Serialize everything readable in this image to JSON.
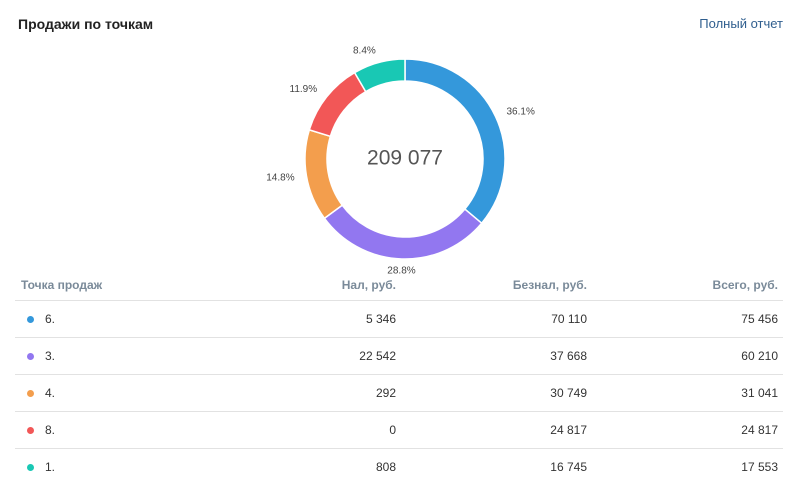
{
  "header": {
    "title": "Продажи по точкам",
    "report_link": "Полный отчет"
  },
  "chart_data": {
    "type": "pie",
    "center_total": "209 077",
    "slices": [
      {
        "label": "6.",
        "percent": 36.1,
        "percent_label": "36.1%",
        "color": "#3498db"
      },
      {
        "label": "3.",
        "percent": 28.8,
        "percent_label": "28.8%",
        "color": "#9277f0"
      },
      {
        "label": "4.",
        "percent": 14.8,
        "percent_label": "14.8%",
        "color": "#f39e4d"
      },
      {
        "label": "8.",
        "percent": 11.9,
        "percent_label": "11.9%",
        "color": "#f25757"
      },
      {
        "label": "1.",
        "percent": 8.4,
        "percent_label": "8.4%",
        "color": "#19c8b4"
      }
    ]
  },
  "table": {
    "headers": {
      "name": "Точка продаж",
      "cash": "Нал, руб.",
      "card": "Безнал, руб.",
      "total": "Всего, руб."
    },
    "rows": [
      {
        "name": "6.",
        "cash": "5 346",
        "card": "70 110",
        "total": "75 456",
        "color": "#3498db"
      },
      {
        "name": "3.",
        "cash": "22 542",
        "card": "37 668",
        "total": "60 210",
        "color": "#9277f0"
      },
      {
        "name": "4.",
        "cash": "292",
        "card": "30 749",
        "total": "31 041",
        "color": "#f39e4d"
      },
      {
        "name": "8.",
        "cash": "0",
        "card": "24 817",
        "total": "24 817",
        "color": "#f25757"
      },
      {
        "name": "1.",
        "cash": "808",
        "card": "16 745",
        "total": "17 553",
        "color": "#19c8b4"
      }
    ]
  }
}
